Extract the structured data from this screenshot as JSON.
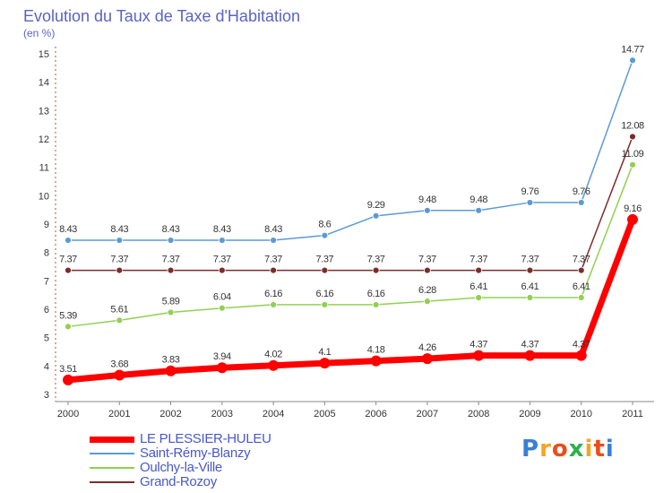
{
  "chart_data": {
    "type": "line",
    "title": "Evolution du Taux de Taxe d'Habitation",
    "subtitle": "(en %)",
    "categories": [
      "2000",
      "2001",
      "2002",
      "2003",
      "2004",
      "2005",
      "2006",
      "2007",
      "2008",
      "2009",
      "2010",
      "2011"
    ],
    "ylim": [
      3,
      15
    ],
    "yticks": [
      "3",
      "4",
      "5",
      "6",
      "7",
      "8",
      "9",
      "10",
      "11",
      "12",
      "13",
      "14",
      "15"
    ],
    "grid": false,
    "legend_position": "bottom-left",
    "series": [
      {
        "name": "LE PLESSIER-HULEU",
        "color": "#ff0000",
        "labels": [
          "3.51",
          "3.68",
          "3.83",
          "3.94",
          "4.02",
          "4.1",
          "4.18",
          "4.26",
          "4.37",
          "4.37",
          "4.37",
          "9.16"
        ],
        "values": [
          3.51,
          3.68,
          3.83,
          3.94,
          4.02,
          4.1,
          4.18,
          4.26,
          4.37,
          4.37,
          4.37,
          9.16
        ]
      },
      {
        "name": "Saint-Rémy-Blanzy",
        "color": "#5b9bd5",
        "labels": [
          "8.43",
          "8.43",
          "8.43",
          "8.43",
          "8.43",
          "8.6",
          "9.29",
          "9.48",
          "9.48",
          "9.76",
          "9.76",
          "14.77"
        ],
        "values": [
          8.43,
          8.43,
          8.43,
          8.43,
          8.43,
          8.6,
          9.29,
          9.48,
          9.48,
          9.76,
          9.76,
          14.77
        ]
      },
      {
        "name": "Oulchy-la-Ville",
        "color": "#92d050",
        "labels": [
          "5.39",
          "5.61",
          "5.89",
          "6.04",
          "6.16",
          "6.16",
          "6.16",
          "6.28",
          "6.41",
          "6.41",
          "6.41",
          "11.09"
        ],
        "values": [
          5.39,
          5.61,
          5.89,
          6.04,
          6.16,
          6.16,
          6.16,
          6.28,
          6.41,
          6.41,
          6.41,
          11.09
        ]
      },
      {
        "name": "Grand-Rozoy",
        "color": "#7b2c2c",
        "labels": [
          "7.37",
          "7.37",
          "7.37",
          "7.37",
          "7.37",
          "7.37",
          "7.37",
          "7.37",
          "7.37",
          "7.37",
          "7.37",
          "12.08"
        ],
        "values": [
          7.37,
          7.37,
          7.37,
          7.37,
          7.37,
          7.37,
          7.37,
          7.37,
          7.37,
          7.37,
          7.37,
          12.08
        ]
      }
    ]
  },
  "brand": {
    "letters": [
      "P",
      "r",
      "o",
      "x",
      "i",
      "t",
      "i"
    ],
    "colors": [
      "#3b7fd4",
      "#f4a623",
      "#e94e1b",
      "#2bb24c",
      "#f4a623",
      "#e94e1b",
      "#3b7fd4"
    ]
  }
}
